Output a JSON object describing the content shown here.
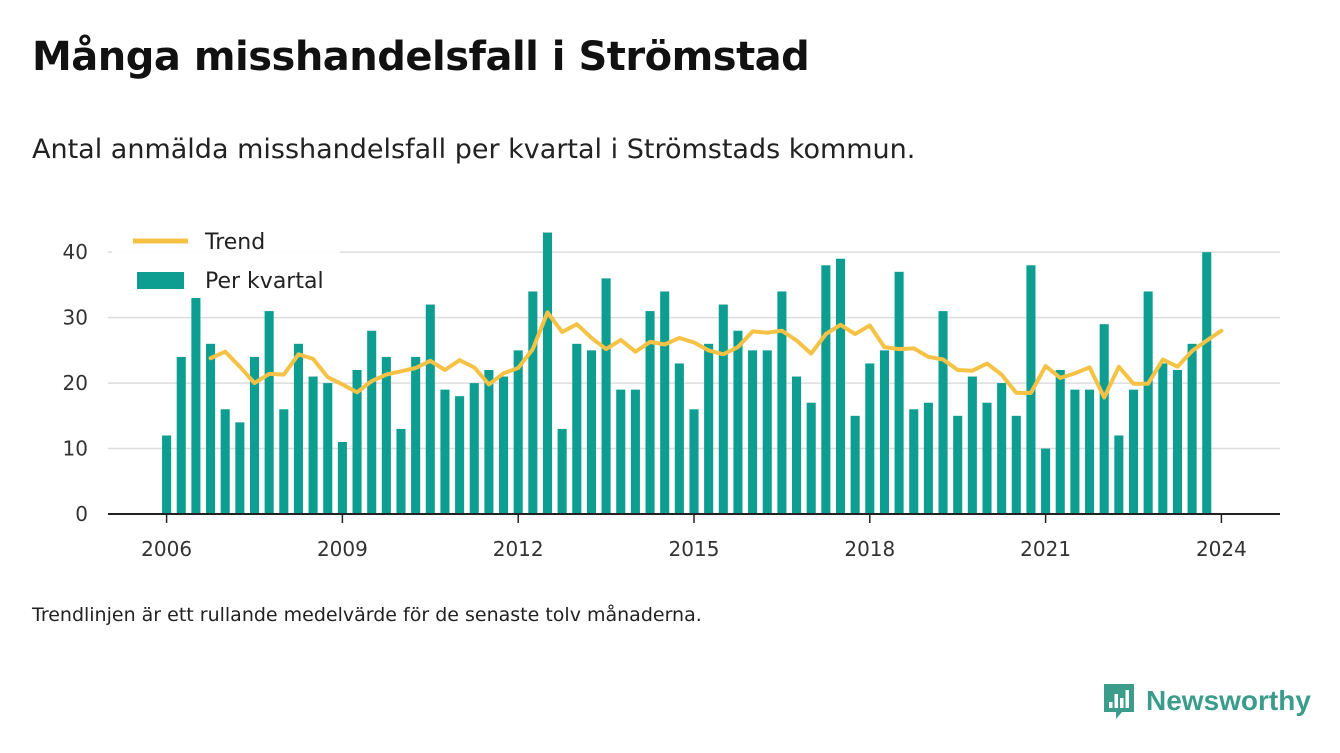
{
  "title": "Många misshandelsfall i Strömstad",
  "subtitle": "Antal anmälda misshandelsfall per kvartal i Strömstads kommun.",
  "footnote": "Trendlinjen är ett rullande medelvärde för de senaste tolv månaderna.",
  "brand": "Newsworthy",
  "colors": {
    "bars": "#0e9e91",
    "trend": "#f6c245",
    "grid": "#dddddd",
    "axis": "#222222"
  },
  "chart_data": {
    "type": "bar",
    "x_start": 2006,
    "x_step": 0.25,
    "xlim": [
      2005.0,
      2025.0
    ],
    "ylim": [
      0,
      44
    ],
    "xticks": [
      2006,
      2009,
      2012,
      2015,
      2018,
      2021,
      2024
    ],
    "yticks": [
      0,
      10,
      20,
      30,
      40
    ],
    "grid": true,
    "legend_position": "top-left",
    "series": [
      {
        "name": "Per kvartal",
        "type": "bar",
        "values": [
          12,
          24,
          33,
          26,
          16,
          14,
          24,
          31,
          16,
          26,
          21,
          20,
          11,
          22,
          28,
          24,
          13,
          24,
          32,
          19,
          18,
          20,
          22,
          21,
          25,
          34,
          43,
          13,
          26,
          25,
          36,
          19,
          19,
          31,
          34,
          23,
          16,
          26,
          32,
          28,
          25,
          25,
          34,
          21,
          17,
          38,
          39,
          15,
          23,
          25,
          37,
          16,
          17,
          31,
          15,
          21,
          17,
          20,
          15,
          38,
          10,
          22,
          19,
          19,
          29,
          12,
          19,
          34,
          23,
          22,
          26,
          40
        ]
      },
      {
        "name": "Trend",
        "type": "line",
        "start_index": 3,
        "values": [
          23.8,
          24.8,
          22.5,
          20.0,
          21.4,
          21.3,
          24.4,
          23.7,
          20.9,
          19.8,
          18.6,
          20.3,
          21.3,
          21.8,
          22.3,
          23.4,
          22.0,
          23.5,
          22.4,
          19.8,
          21.5,
          22.3,
          25.2,
          30.8,
          27.8,
          29.0,
          26.9,
          25.2,
          26.6,
          24.8,
          26.3,
          25.9,
          26.9,
          26.2,
          25.0,
          24.4,
          25.5,
          27.9,
          27.7,
          28.0,
          26.5,
          24.5,
          27.5,
          28.9,
          27.5,
          28.8,
          25.5,
          25.2,
          25.3,
          24.0,
          23.6,
          22.0,
          21.9,
          23.0,
          21.3,
          18.5,
          18.5,
          22.6,
          20.8,
          21.5,
          22.4,
          17.8,
          22.5,
          19.9,
          19.9,
          23.6,
          22.5,
          24.9,
          26.5,
          28.0
        ]
      }
    ]
  }
}
